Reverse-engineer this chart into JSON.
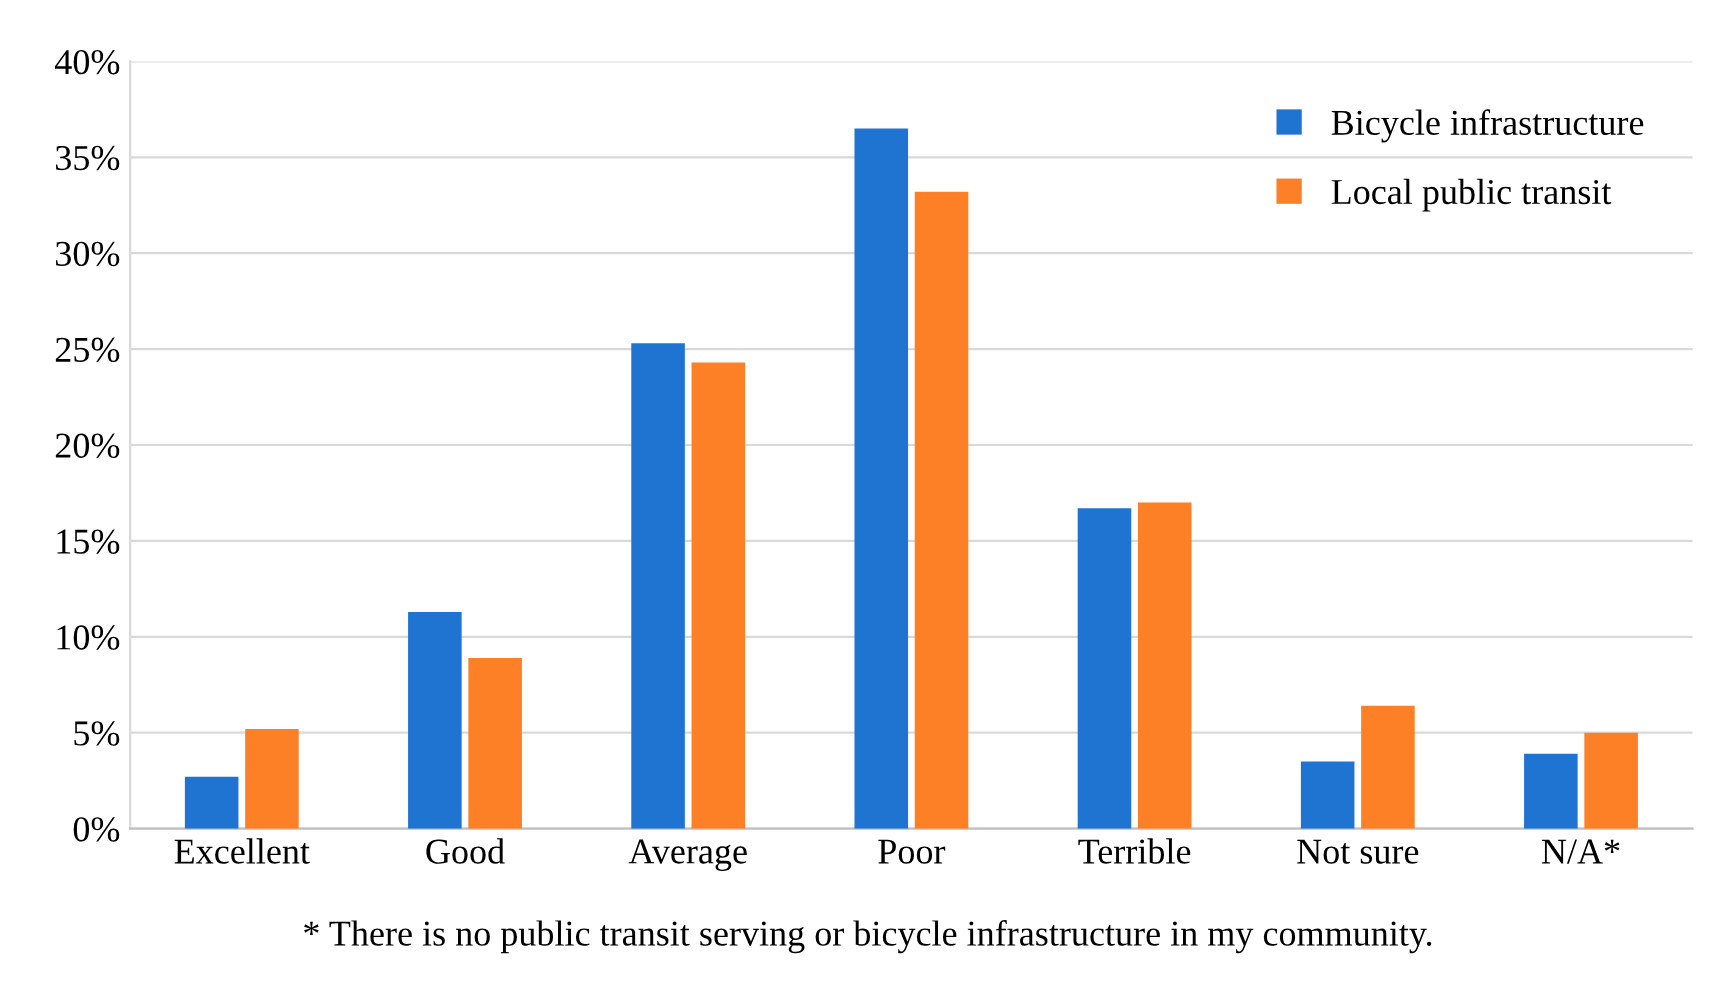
{
  "chart_data": {
    "type": "bar",
    "categories": [
      "Excellent",
      "Good",
      "Average",
      "Poor",
      "Terrible",
      "Not sure",
      "N/A*"
    ],
    "series": [
      {
        "name": "Bicycle infrastructure",
        "color": "#1f74d2",
        "values": [
          2.7,
          11.3,
          25.3,
          36.5,
          16.7,
          3.5,
          3.9
        ]
      },
      {
        "name": "Local public transit",
        "color": "#fd7f26",
        "values": [
          5.2,
          8.9,
          24.3,
          33.2,
          17.0,
          6.4,
          5.0
        ]
      }
    ],
    "ylim": [
      0,
      40
    ],
    "yticks": [
      {
        "value": 0,
        "label": "0%"
      },
      {
        "value": 5,
        "label": "5%"
      },
      {
        "value": 10,
        "label": "10%"
      },
      {
        "value": 15,
        "label": "15%"
      },
      {
        "value": 20,
        "label": "20%"
      },
      {
        "value": 25,
        "label": "25%"
      },
      {
        "value": 30,
        "label": "30%"
      },
      {
        "value": 35,
        "label": "35%"
      },
      {
        "value": 40,
        "label": "40%"
      }
    ],
    "grid": "y",
    "legend": "top right",
    "annotations": [
      "* There is no public transit serving or bicycle infrastructure in my community."
    ]
  }
}
